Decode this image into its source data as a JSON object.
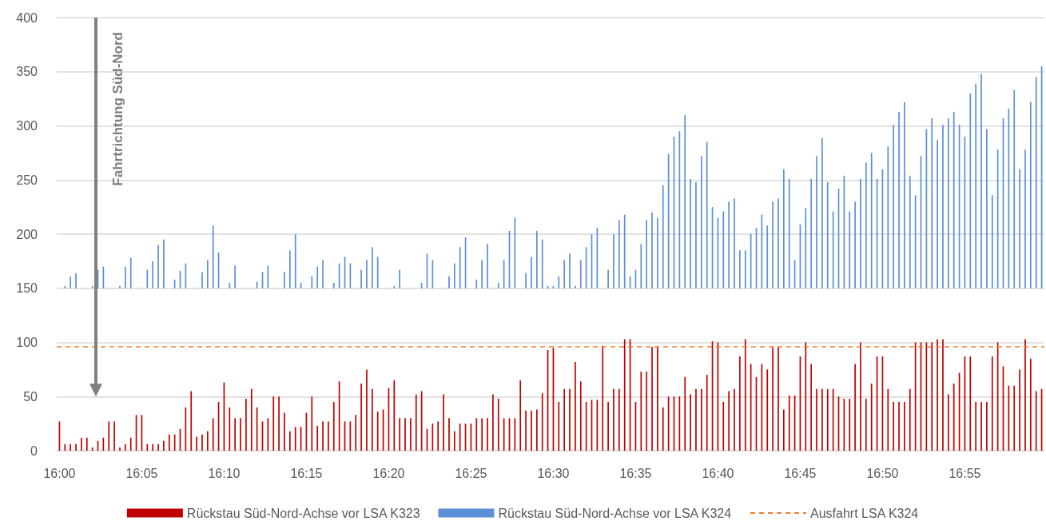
{
  "chart_data": {
    "type": "bar",
    "categories": [
      "16:00",
      null,
      null,
      null,
      null,
      null,
      null,
      null,
      null,
      null,
      null,
      null,
      null,
      null,
      null,
      "16:05",
      null,
      null,
      null,
      null,
      null,
      null,
      null,
      null,
      null,
      null,
      null,
      null,
      null,
      null,
      "16:10",
      null,
      null,
      null,
      null,
      null,
      null,
      null,
      null,
      null,
      null,
      null,
      null,
      null,
      null,
      "16:15",
      null,
      null,
      null,
      null,
      null,
      null,
      null,
      null,
      null,
      null,
      null,
      null,
      null,
      null,
      "16:20",
      null,
      null,
      null,
      null,
      null,
      null,
      null,
      null,
      null,
      null,
      null,
      null,
      null,
      null,
      "16:25",
      null,
      null,
      null,
      null,
      null,
      null,
      null,
      null,
      null,
      null,
      null,
      null,
      null,
      null,
      "16:30",
      null,
      null,
      null,
      null,
      null,
      null,
      null,
      null,
      null,
      null,
      null,
      null,
      null,
      null,
      "16:35",
      null,
      null,
      null,
      null,
      null,
      null,
      null,
      null,
      null,
      null,
      null,
      null,
      null,
      null,
      "16:40",
      null,
      null,
      null,
      null,
      null,
      null,
      null,
      null,
      null,
      null,
      null,
      null,
      null,
      null,
      "16:45",
      null,
      null,
      null,
      null,
      null,
      null,
      null,
      null,
      null,
      null,
      null,
      null,
      null,
      null,
      "16:50",
      null,
      null,
      null,
      null,
      null,
      null,
      null,
      null,
      null,
      null,
      null,
      null,
      null,
      null,
      "16:55",
      null,
      null,
      null,
      null,
      null,
      null,
      null,
      null,
      null,
      null,
      null,
      null,
      null,
      null
    ],
    "series": [
      {
        "name": "Rückstau Süd-Nord-Achse vor LSA K323",
        "color": "#c00000",
        "values": [
          27,
          6,
          6,
          6,
          12,
          12,
          3,
          9,
          12,
          27,
          27,
          3,
          6,
          12,
          33,
          33,
          6,
          6,
          6,
          9,
          15,
          15,
          20,
          40,
          55,
          13,
          15,
          18,
          30,
          45,
          63,
          40,
          30,
          30,
          48,
          57,
          40,
          27,
          30,
          50,
          50,
          35,
          18,
          22,
          22,
          35,
          50,
          23,
          27,
          27,
          45,
          64,
          27,
          27,
          33,
          62,
          75,
          57,
          36,
          38,
          58,
          65,
          30,
          30,
          30,
          52,
          55,
          20,
          25,
          27,
          52,
          30,
          18,
          25,
          25,
          25,
          30,
          30,
          30,
          52,
          48,
          30,
          30,
          30,
          65,
          37,
          37,
          38,
          53,
          93,
          95,
          45,
          57,
          57,
          82,
          64,
          45,
          47,
          47,
          97,
          45,
          57,
          57,
          103,
          103,
          45,
          73,
          73,
          96,
          96,
          40,
          50,
          50,
          50,
          68,
          52,
          57,
          57,
          70,
          101,
          100,
          45,
          55,
          57,
          87,
          103,
          80,
          68,
          80,
          75,
          96,
          96,
          38,
          51,
          51,
          87,
          100,
          80,
          57,
          57,
          57,
          57,
          50,
          48,
          48,
          80,
          100,
          48,
          62,
          87,
          87,
          57,
          45,
          45,
          45,
          57,
          100,
          100,
          100,
          100,
          103,
          103,
          52,
          62,
          72,
          87,
          87,
          45,
          45,
          45,
          87,
          100,
          78,
          60,
          60,
          75,
          103,
          85,
          55,
          57
        ]
      },
      {
        "name": "Rückstau Süd-Nord-Achse vor LSA K324",
        "color": "#5b8fd6",
        "base": [
          null,
          150,
          150,
          150,
          null,
          null,
          150,
          150,
          150,
          null,
          null,
          150,
          150,
          150,
          null,
          null,
          150,
          150,
          150,
          150,
          null,
          150,
          150,
          150,
          null,
          null,
          150,
          150,
          150,
          150,
          null,
          150,
          150,
          null,
          null,
          null,
          150,
          150,
          150,
          null,
          null,
          150,
          150,
          150,
          150,
          null,
          150,
          150,
          150,
          null,
          150,
          150,
          150,
          150,
          null,
          150,
          150,
          150,
          150,
          null,
          null,
          150,
          150,
          null,
          null,
          null,
          150,
          150,
          150,
          null,
          null,
          150,
          150,
          150,
          150,
          null,
          150,
          150,
          150,
          null,
          150,
          150,
          150,
          150,
          null,
          150,
          150,
          150,
          150,
          150,
          150,
          150,
          150,
          150,
          150,
          150,
          150,
          150,
          150,
          null,
          150,
          150,
          150,
          150,
          150,
          150,
          150,
          150,
          150,
          150,
          150,
          150,
          150,
          150,
          150,
          150,
          150,
          150,
          150,
          150,
          150,
          150,
          150,
          150,
          150,
          150,
          150,
          150,
          150,
          150,
          150,
          150,
          150,
          150,
          150,
          150,
          150,
          150,
          150,
          150,
          150,
          150,
          150,
          150,
          150,
          150,
          150,
          150,
          150,
          150,
          150,
          150,
          150,
          150,
          150,
          150,
          150,
          150,
          150,
          150,
          150,
          150,
          150,
          150,
          150,
          150,
          150,
          150,
          150,
          150,
          150,
          150,
          150,
          150,
          150,
          150,
          150,
          150,
          150,
          150
        ],
        "values": [
          null,
          2,
          11,
          14,
          null,
          null,
          2,
          17,
          20,
          null,
          null,
          2,
          20,
          28,
          null,
          null,
          17,
          25,
          40,
          45,
          null,
          8,
          16,
          23,
          null,
          null,
          15,
          26,
          58,
          33,
          null,
          5,
          21,
          null,
          null,
          null,
          6,
          15,
          21,
          null,
          null,
          15,
          35,
          50,
          5,
          null,
          11,
          20,
          26,
          null,
          5,
          23,
          29,
          23,
          null,
          17,
          26,
          38,
          29,
          null,
          null,
          2,
          17,
          null,
          null,
          null,
          5,
          32,
          26,
          null,
          null,
          11,
          23,
          38,
          47,
          null,
          8,
          26,
          41,
          null,
          5,
          26,
          53,
          65,
          null,
          14,
          29,
          53,
          45,
          2,
          2,
          11,
          26,
          32,
          2,
          26,
          38,
          50,
          56,
          null,
          17,
          50,
          63,
          68,
          11,
          17,
          41,
          63,
          70,
          65,
          95,
          124,
          140,
          145,
          160,
          101,
          98,
          122,
          135,
          75,
          65,
          71,
          80,
          83,
          35,
          35,
          50,
          56,
          68,
          58,
          80,
          83,
          110,
          101,
          26,
          59,
          74,
          101,
          122,
          139,
          98,
          71,
          92,
          104,
          71,
          80,
          101,
          116,
          125,
          101,
          110,
          131,
          151,
          163,
          172,
          104,
          86,
          122,
          147,
          157,
          137,
          151,
          157,
          163,
          151,
          140,
          180,
          189,
          198,
          147,
          86,
          128,
          157,
          166,
          183,
          110,
          128,
          172,
          195,
          205
        ]
      }
    ],
    "ref_lines": [
      {
        "axis": "y",
        "value": 96,
        "label": "Ausfahrt LSA K324",
        "color": "#ed7d31",
        "line_style": "dashed"
      }
    ],
    "annotations": [
      "Fahrtrichtung Süd-Nord"
    ],
    "ylim": [
      0,
      400
    ],
    "yticks": [
      0,
      50,
      100,
      150,
      200,
      250,
      300,
      350,
      400
    ],
    "grid": "y",
    "legend": "bottom"
  }
}
